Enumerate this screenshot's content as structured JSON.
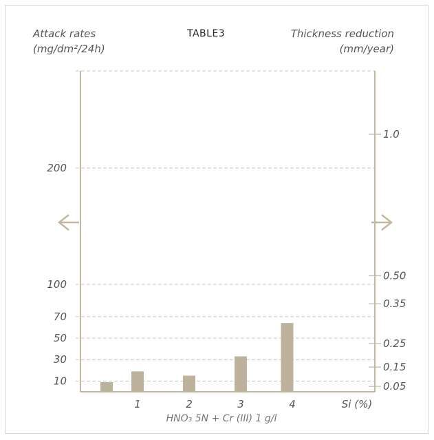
{
  "header": {
    "left_label_line1": "Attack rates",
    "left_label_line2": "(mg/dm²/24h)",
    "title": "TABLE3",
    "right_label_line1": "Thickness reduction",
    "right_label_line2": "(mm/year)"
  },
  "chart_data": {
    "type": "bar",
    "title": "TABLE3",
    "xlabel": "Si (%)",
    "caption": "HNO₃ 5N + Cr (III) 1 g/l",
    "categories_ticks": [
      "1",
      "2",
      "3",
      "4"
    ],
    "x": [
      0.4,
      1.0,
      2.0,
      3.0,
      3.9
    ],
    "values": [
      9,
      19,
      15,
      33,
      64
    ],
    "ylim": [
      0,
      215
    ],
    "y_left": {
      "label": "Attack rates (mg/dm²/24h)",
      "ticks": [
        10,
        30,
        50,
        70,
        100,
        200
      ],
      "tick_labels": [
        "10",
        "30",
        "50",
        "70",
        "100",
        "200"
      ]
    },
    "y_right": {
      "label": "Thickness reduction (mm/year)",
      "ticks_at_left_units": [
        5,
        23,
        45,
        82,
        108,
        249
      ],
      "tick_labels": [
        "0.05",
        "0.15",
        "0.25",
        "0.35",
        "0.50",
        "1.0"
      ]
    },
    "grid": true,
    "axis_break": true,
    "colors": {
      "bar": "#bdb29b",
      "axis": "#c2b79f",
      "grid": "#c7c7c7",
      "arrow": "#c2b79f"
    }
  }
}
